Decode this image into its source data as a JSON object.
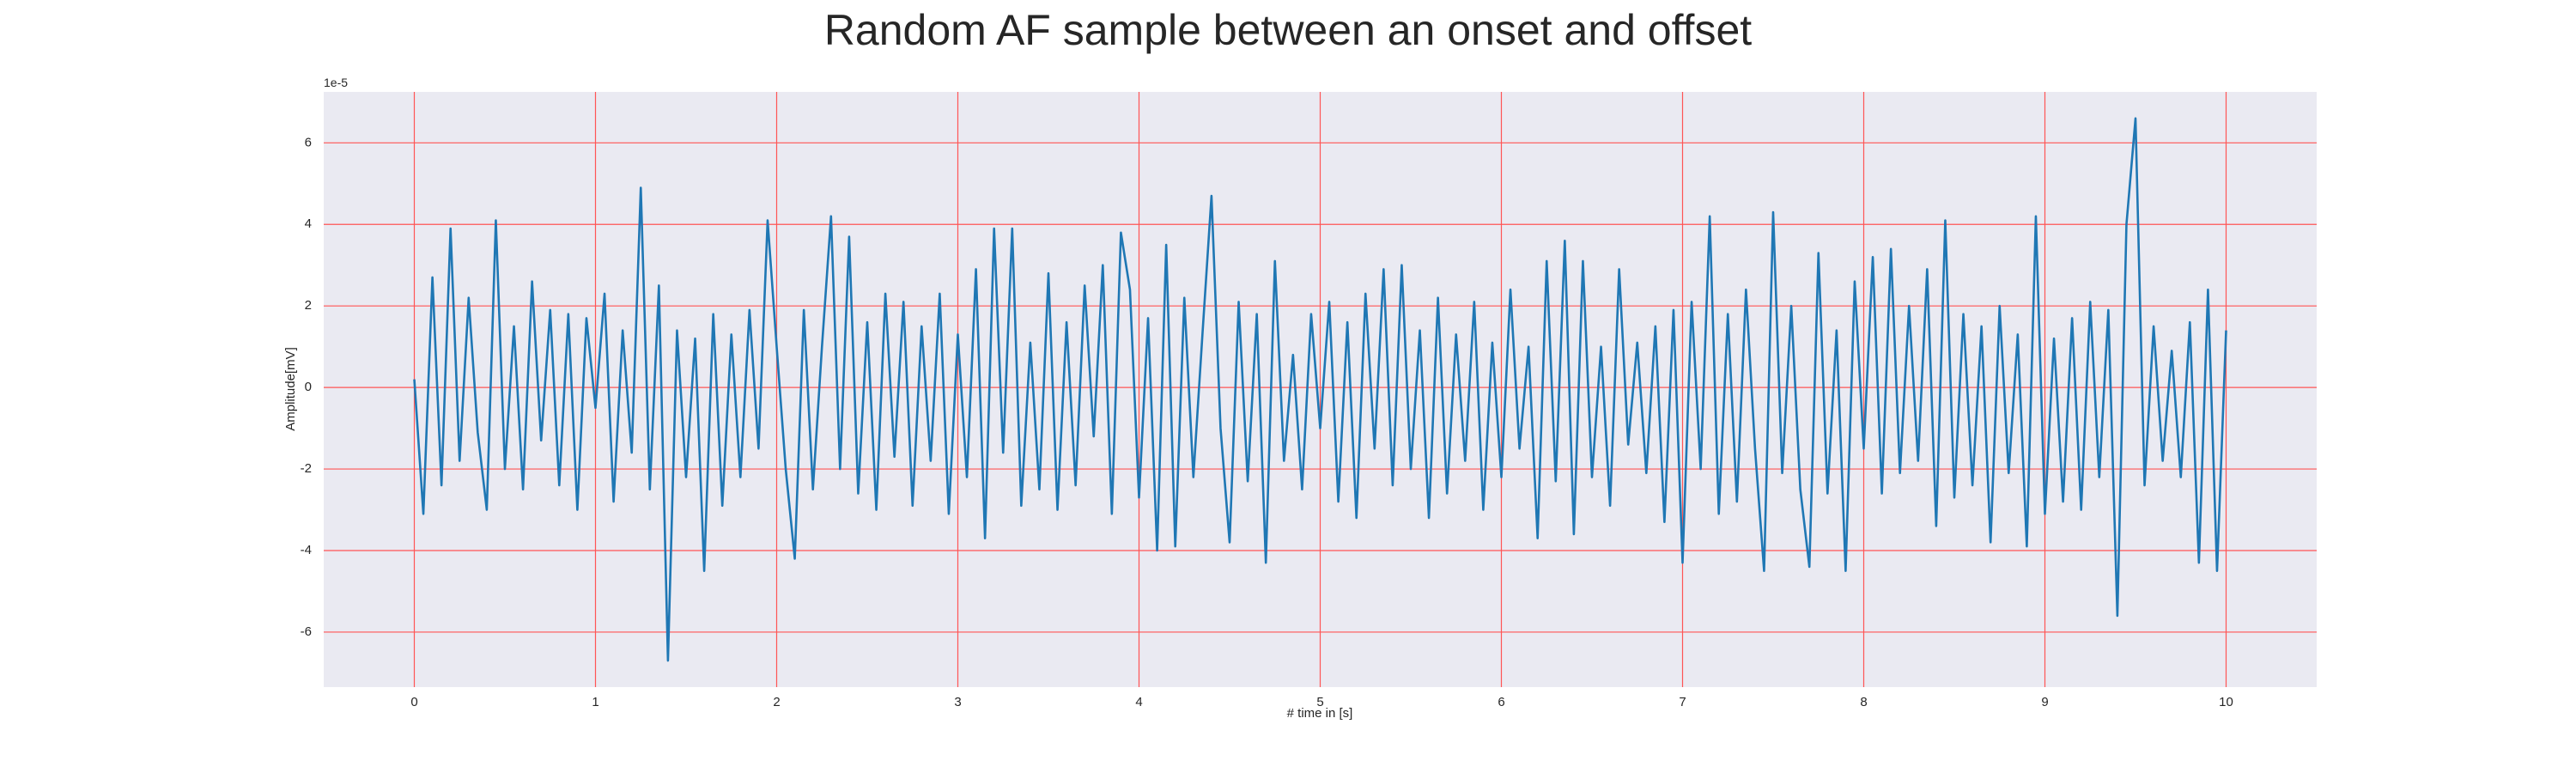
{
  "chart_data": {
    "type": "line",
    "title": "Random AF sample between an onset and offset",
    "x_label": "# time in [s]",
    "y_label": "Amplitude[mV]",
    "y_offset_label": "1e-5",
    "color": "#1f77b4",
    "grid": true,
    "grid_color": "#ff5555",
    "background": "#eaeaf2",
    "xlim": [
      -0.5,
      10.5
    ],
    "ylim": [
      -7.35,
      7.25
    ],
    "xticks": [
      0,
      1,
      2,
      3,
      4,
      5,
      6,
      7,
      8,
      9,
      10
    ],
    "yticks": [
      -6,
      -4,
      -2,
      0,
      2,
      4,
      6
    ],
    "x": [
      0,
      0.05,
      0.1,
      0.15,
      0.2,
      0.25,
      0.3,
      0.35,
      0.4,
      0.45,
      0.5,
      0.55,
      0.6,
      0.65,
      0.7,
      0.75,
      0.8,
      0.85,
      0.9,
      0.95,
      1,
      1.05,
      1.1,
      1.15,
      1.2,
      1.25,
      1.3,
      1.35,
      1.4,
      1.45,
      1.5,
      1.55,
      1.6,
      1.65,
      1.7,
      1.75,
      1.8,
      1.85,
      1.9,
      1.95,
      2,
      2.05,
      2.1,
      2.15,
      2.2,
      2.25,
      2.3,
      2.35,
      2.4,
      2.45,
      2.5,
      2.55,
      2.6,
      2.65,
      2.7,
      2.75,
      2.8,
      2.85,
      2.9,
      2.95,
      3,
      3.05,
      3.1,
      3.15,
      3.2,
      3.25,
      3.3,
      3.35,
      3.4,
      3.45,
      3.5,
      3.55,
      3.6,
      3.65,
      3.7,
      3.75,
      3.8,
      3.85,
      3.9,
      3.95,
      4,
      4.05,
      4.1,
      4.15,
      4.2,
      4.25,
      4.3,
      4.35,
      4.4,
      4.45,
      4.5,
      4.55,
      4.6,
      4.65,
      4.7,
      4.75,
      4.8,
      4.85,
      4.9,
      4.95,
      5,
      5.05,
      5.1,
      5.15,
      5.2,
      5.25,
      5.3,
      5.35,
      5.4,
      5.45,
      5.5,
      5.55,
      5.6,
      5.65,
      5.7,
      5.75,
      5.8,
      5.85,
      5.9,
      5.95,
      6,
      6.05,
      6.1,
      6.15,
      6.2,
      6.25,
      6.3,
      6.35,
      6.4,
      6.45,
      6.5,
      6.55,
      6.6,
      6.65,
      6.7,
      6.75,
      6.8,
      6.85,
      6.9,
      6.95,
      7,
      7.05,
      7.1,
      7.15,
      7.2,
      7.25,
      7.3,
      7.35,
      7.4,
      7.45,
      7.5,
      7.55,
      7.6,
      7.65,
      7.7,
      7.75,
      7.8,
      7.85,
      7.9,
      7.95,
      8,
      8.05,
      8.1,
      8.15,
      8.2,
      8.25,
      8.3,
      8.35,
      8.4,
      8.45,
      8.5,
      8.55,
      8.6,
      8.65,
      8.7,
      8.75,
      8.8,
      8.85,
      8.9,
      8.95,
      9,
      9.05,
      9.1,
      9.15,
      9.2,
      9.25,
      9.3,
      9.35,
      9.4,
      9.45,
      9.5,
      9.55,
      9.6,
      9.65,
      9.7,
      9.75,
      9.8,
      9.85,
      9.9,
      9.95,
      10
    ],
    "values": [
      0.2,
      -3.1,
      2.7,
      -2.4,
      3.9,
      -1.8,
      2.2,
      -1.1,
      -3.0,
      4.1,
      -2.0,
      1.5,
      -2.5,
      2.6,
      -1.3,
      1.9,
      -2.4,
      1.8,
      -3.0,
      1.7,
      -0.5,
      2.3,
      -2.8,
      1.4,
      -1.6,
      4.9,
      -2.5,
      2.5,
      -6.7,
      1.4,
      -2.2,
      1.2,
      -4.5,
      1.8,
      -2.9,
      1.3,
      -2.2,
      1.9,
      -1.5,
      4.1,
      1.0,
      -2.0,
      -4.2,
      1.9,
      -2.5,
      1.0,
      4.2,
      -2.0,
      3.7,
      -2.6,
      1.6,
      -3.0,
      2.3,
      -1.7,
      2.1,
      -2.9,
      1.5,
      -1.8,
      2.3,
      -3.1,
      1.3,
      -2.2,
      2.9,
      -3.7,
      3.9,
      -1.6,
      3.9,
      -2.9,
      1.1,
      -2.5,
      2.8,
      -3.0,
      1.6,
      -2.4,
      2.5,
      -1.2,
      3.0,
      -3.1,
      3.8,
      2.4,
      -2.7,
      1.7,
      -4.0,
      3.5,
      -3.9,
      2.2,
      -2.2,
      1.3,
      4.7,
      -1.0,
      -3.8,
      2.1,
      -2.3,
      1.8,
      -4.3,
      3.1,
      -1.8,
      0.8,
      -2.5,
      1.8,
      -1.0,
      2.1,
      -2.8,
      1.6,
      -3.2,
      2.3,
      -1.5,
      2.9,
      -2.4,
      3.0,
      -2.0,
      1.4,
      -3.2,
      2.2,
      -2.6,
      1.3,
      -1.8,
      2.1,
      -3.0,
      1.1,
      -2.2,
      2.4,
      -1.5,
      1.0,
      -3.7,
      3.1,
      -2.3,
      3.6,
      -3.6,
      3.1,
      -2.2,
      1.0,
      -2.9,
      2.9,
      -1.4,
      1.1,
      -2.1,
      1.5,
      -3.3,
      1.9,
      -4.3,
      2.1,
      -2.0,
      4.2,
      -3.1,
      1.8,
      -2.8,
      2.4,
      -1.5,
      -4.5,
      4.3,
      -2.1,
      2.0,
      -2.5,
      -4.4,
      3.3,
      -2.6,
      1.4,
      -4.5,
      2.6,
      -1.5,
      3.2,
      -2.6,
      3.4,
      -2.1,
      2.0,
      -1.8,
      2.9,
      -3.4,
      4.1,
      -2.7,
      1.8,
      -2.4,
      1.5,
      -3.8,
      2.0,
      -2.1,
      1.3,
      -3.9,
      4.2,
      -3.1,
      1.2,
      -2.8,
      1.7,
      -3.0,
      2.1,
      -2.2,
      1.9,
      -5.6,
      4.0,
      6.6,
      -2.4,
      1.5,
      -1.8,
      0.9,
      -2.2,
      1.6,
      -4.3,
      2.4,
      -4.5,
      1.4
    ]
  }
}
